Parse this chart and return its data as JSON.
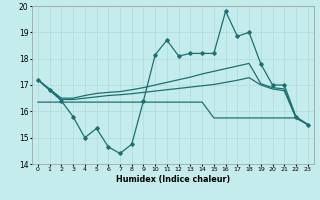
{
  "xlabel": "Humidex (Indice chaleur)",
  "xlim": [
    -0.5,
    23.5
  ],
  "ylim": [
    14,
    20
  ],
  "yticks": [
    14,
    15,
    16,
    17,
    18,
    19,
    20
  ],
  "xtick_labels": [
    "0",
    "1",
    "2",
    "3",
    "4",
    "5",
    "6",
    "7",
    "8",
    "9",
    "10",
    "11",
    "12",
    "13",
    "14",
    "15",
    "16",
    "17",
    "18",
    "19",
    "20",
    "21",
    "22",
    "23"
  ],
  "bg_color": "#c5ecec",
  "grid_color": "#b0dcdc",
  "line_color": "#1e7070",
  "y_jagged": [
    17.2,
    16.8,
    16.4,
    15.8,
    15.0,
    15.35,
    14.65,
    14.4,
    14.75,
    16.4,
    18.15,
    18.7,
    18.1,
    18.2,
    18.2,
    18.2,
    19.8,
    18.85,
    19.0,
    17.8,
    17.0,
    17.0,
    15.8,
    15.5
  ],
  "y_upper": [
    17.2,
    16.85,
    16.5,
    16.5,
    16.6,
    16.68,
    16.72,
    16.75,
    16.82,
    16.9,
    17.0,
    17.1,
    17.2,
    17.3,
    17.42,
    17.52,
    17.62,
    17.72,
    17.82,
    17.05,
    16.9,
    16.85,
    15.75,
    15.5
  ],
  "y_mid": [
    17.2,
    16.82,
    16.45,
    16.45,
    16.5,
    16.55,
    16.6,
    16.63,
    16.67,
    16.72,
    16.77,
    16.82,
    16.87,
    16.92,
    16.97,
    17.02,
    17.1,
    17.18,
    17.28,
    17.0,
    16.85,
    16.78,
    15.75,
    15.5
  ],
  "y_flat": [
    16.35,
    16.35,
    16.35,
    16.35,
    16.35,
    16.35,
    16.35,
    16.35,
    16.35,
    16.35,
    16.35,
    16.35,
    16.35,
    16.35,
    16.35,
    15.75,
    15.75,
    15.75,
    15.75,
    15.75,
    15.75,
    15.75,
    15.75,
    15.5
  ]
}
